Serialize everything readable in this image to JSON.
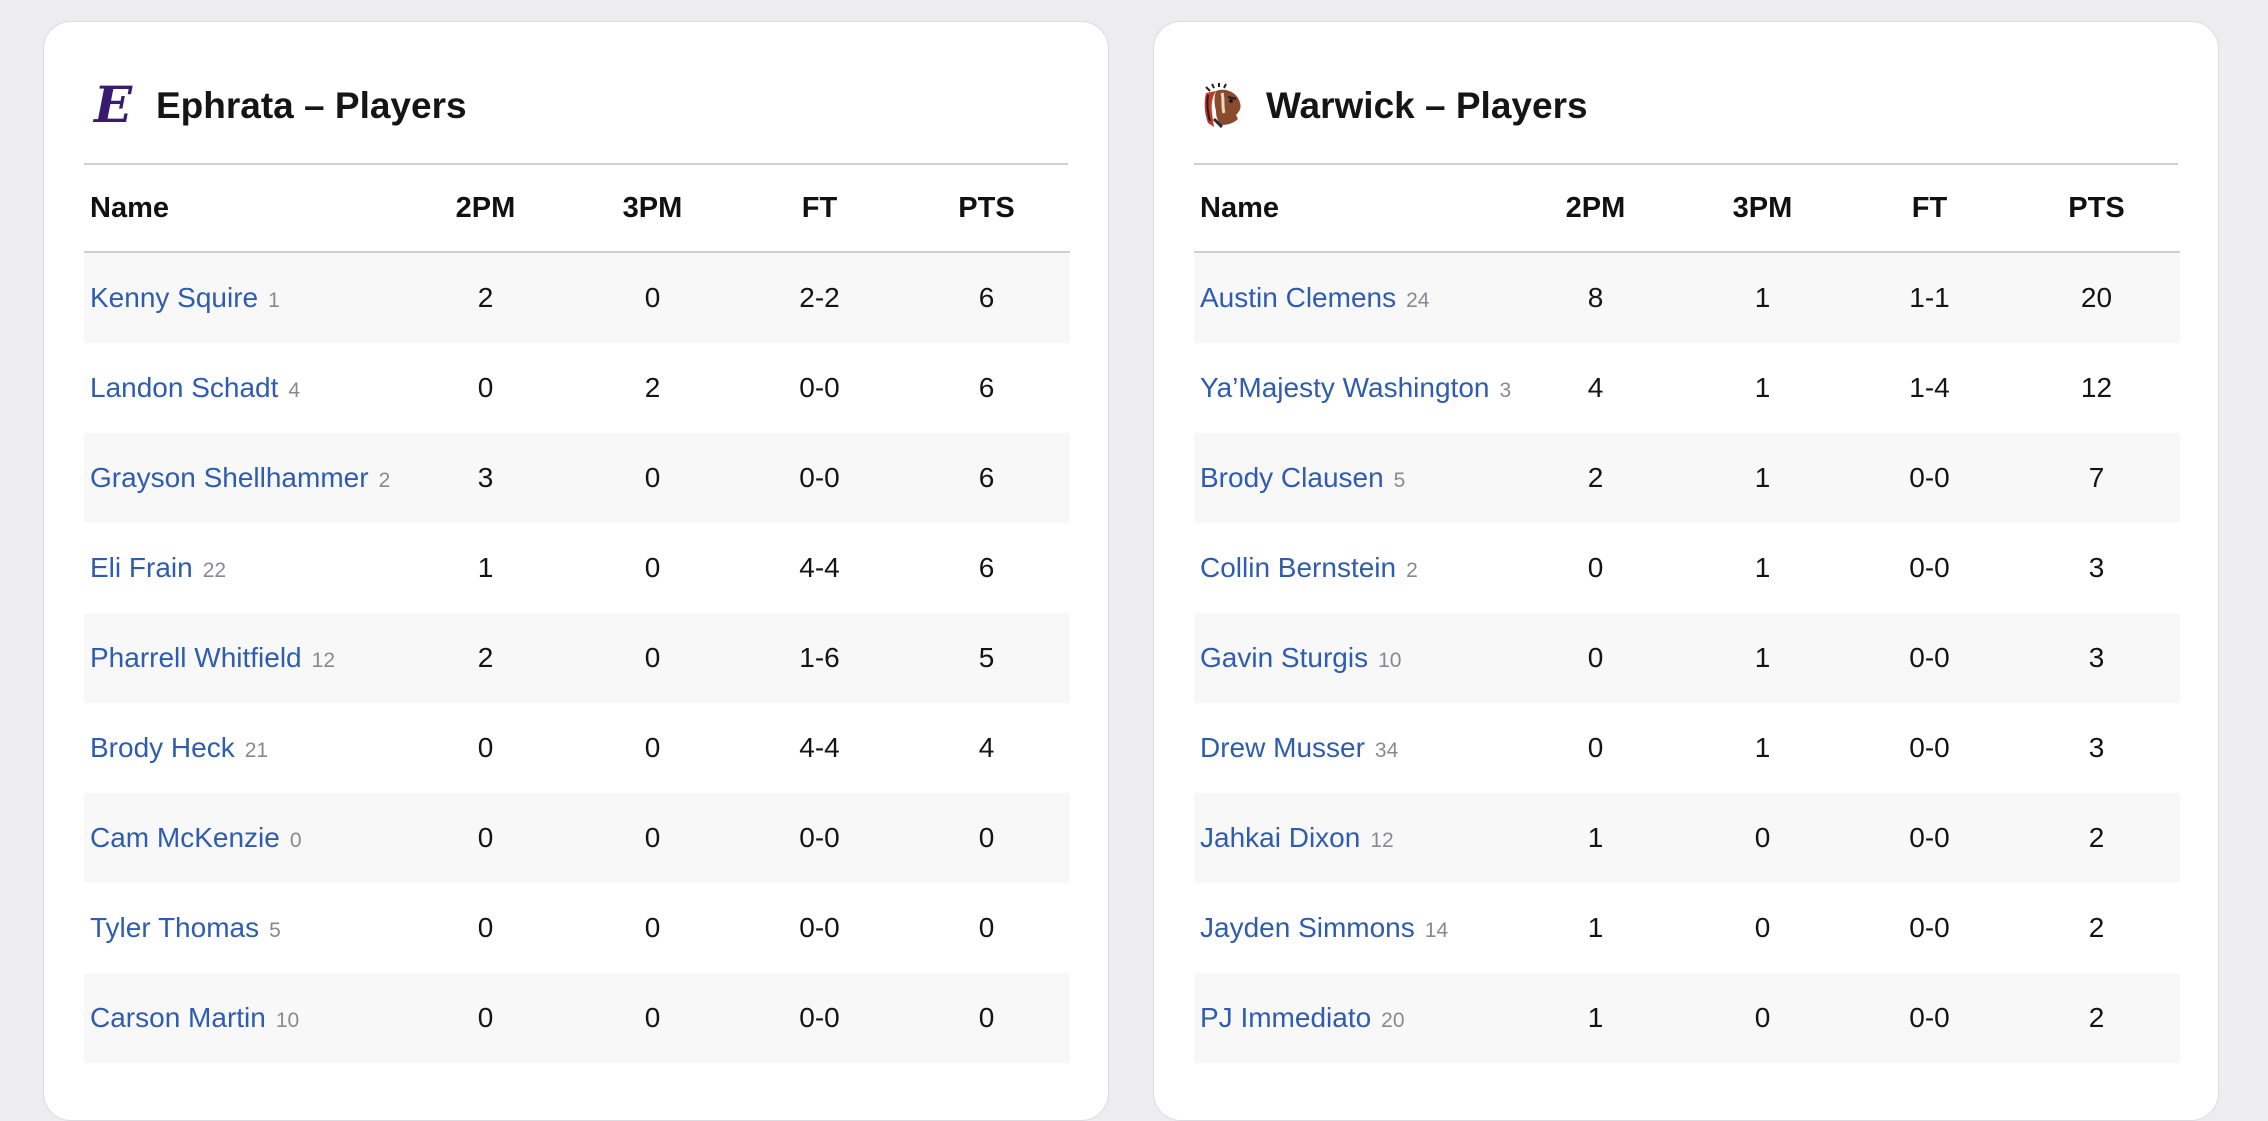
{
  "teams": [
    {
      "title": "Ephrata – Players",
      "logo_icon": "ephrata-old-english-e-logo",
      "logo_color": "#3a1a6e",
      "logo_text": "E",
      "columns": [
        "Name",
        "2PM",
        "3PM",
        "FT",
        "PTS"
      ],
      "players": [
        {
          "name": "Kenny Squire",
          "number": "1",
          "p2m": "2",
          "p3m": "0",
          "ft": "2-2",
          "pts": "6"
        },
        {
          "name": "Landon Schadt",
          "number": "4",
          "p2m": "0",
          "p3m": "2",
          "ft": "0-0",
          "pts": "6"
        },
        {
          "name": "Grayson Shellhammer",
          "number": "2",
          "p2m": "3",
          "p3m": "0",
          "ft": "0-0",
          "pts": "6"
        },
        {
          "name": "Eli Frain",
          "number": "22",
          "p2m": "1",
          "p3m": "0",
          "ft": "4-4",
          "pts": "6"
        },
        {
          "name": "Pharrell Whitfield",
          "number": "12",
          "p2m": "2",
          "p3m": "0",
          "ft": "1-6",
          "pts": "5"
        },
        {
          "name": "Brody Heck",
          "number": "21",
          "p2m": "0",
          "p3m": "0",
          "ft": "4-4",
          "pts": "4"
        },
        {
          "name": "Cam McKenzie",
          "number": "0",
          "p2m": "0",
          "p3m": "0",
          "ft": "0-0",
          "pts": "0"
        },
        {
          "name": "Tyler Thomas",
          "number": "5",
          "p2m": "0",
          "p3m": "0",
          "ft": "0-0",
          "pts": "0"
        },
        {
          "name": "Carson Martin",
          "number": "10",
          "p2m": "0",
          "p3m": "0",
          "ft": "0-0",
          "pts": "0"
        }
      ]
    },
    {
      "title": "Warwick – Players",
      "logo_icon": "warwick-warrior-head-logo",
      "columns": [
        "Name",
        "2PM",
        "3PM",
        "FT",
        "PTS"
      ],
      "players": [
        {
          "name": "Austin Clemens",
          "number": "24",
          "p2m": "8",
          "p3m": "1",
          "ft": "1-1",
          "pts": "20"
        },
        {
          "name": "Ya’Majesty Washington",
          "number": "3",
          "p2m": "4",
          "p3m": "1",
          "ft": "1-4",
          "pts": "12"
        },
        {
          "name": "Brody Clausen",
          "number": "5",
          "p2m": "2",
          "p3m": "1",
          "ft": "0-0",
          "pts": "7"
        },
        {
          "name": "Collin Bernstein",
          "number": "2",
          "p2m": "0",
          "p3m": "1",
          "ft": "0-0",
          "pts": "3"
        },
        {
          "name": "Gavin Sturgis",
          "number": "10",
          "p2m": "0",
          "p3m": "1",
          "ft": "0-0",
          "pts": "3"
        },
        {
          "name": "Drew Musser",
          "number": "34",
          "p2m": "0",
          "p3m": "1",
          "ft": "0-0",
          "pts": "3"
        },
        {
          "name": "Jahkai Dixon",
          "number": "12",
          "p2m": "1",
          "p3m": "0",
          "ft": "0-0",
          "pts": "2"
        },
        {
          "name": "Jayden Simmons",
          "number": "14",
          "p2m": "1",
          "p3m": "0",
          "ft": "0-0",
          "pts": "2"
        },
        {
          "name": "PJ Immediato",
          "number": "20",
          "p2m": "1",
          "p3m": "0",
          "ft": "0-0",
          "pts": "2"
        }
      ]
    }
  ],
  "colors": {
    "link": "#2e5cb0",
    "jersey_number": "#8a8a8e",
    "row_stripe": "#f8f8f8",
    "background": "#ededef"
  }
}
